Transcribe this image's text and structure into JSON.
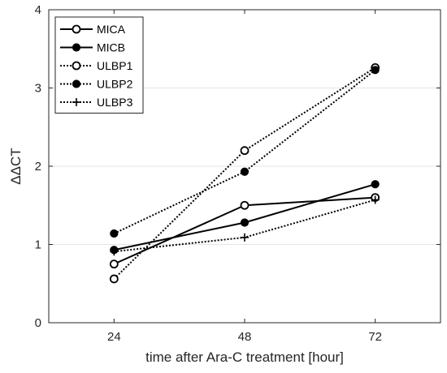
{
  "chart_data": {
    "type": "line",
    "xlabel": "time after Ara-C treatment [hour]",
    "ylabel": "ΔΔCT",
    "x": [
      24,
      48,
      72
    ],
    "xticks": [
      "24",
      "48",
      "72"
    ],
    "xlim": [
      12,
      84
    ],
    "ylim": [
      0,
      4
    ],
    "yticks": [
      "0",
      "1",
      "2",
      "3",
      "4"
    ],
    "grid": "horizontal",
    "legend_position": "top-left",
    "series": [
      {
        "name": "MICA",
        "values": [
          0.75,
          1.5,
          1.6
        ],
        "line": "solid",
        "marker": "open-circle",
        "color": "#000000"
      },
      {
        "name": "MICB",
        "values": [
          0.93,
          1.28,
          1.77
        ],
        "line": "solid",
        "marker": "filled-circle",
        "color": "#000000"
      },
      {
        "name": "ULBP1",
        "values": [
          0.56,
          2.2,
          3.26
        ],
        "line": "dotted",
        "marker": "open-circle",
        "color": "#000000"
      },
      {
        "name": "ULBP2",
        "values": [
          1.14,
          1.93,
          3.23
        ],
        "line": "dotted",
        "marker": "filled-circle",
        "color": "#000000"
      },
      {
        "name": "ULBP3",
        "values": [
          0.91,
          1.09,
          1.57
        ],
        "line": "dotted",
        "marker": "plus",
        "color": "#000000"
      }
    ]
  }
}
